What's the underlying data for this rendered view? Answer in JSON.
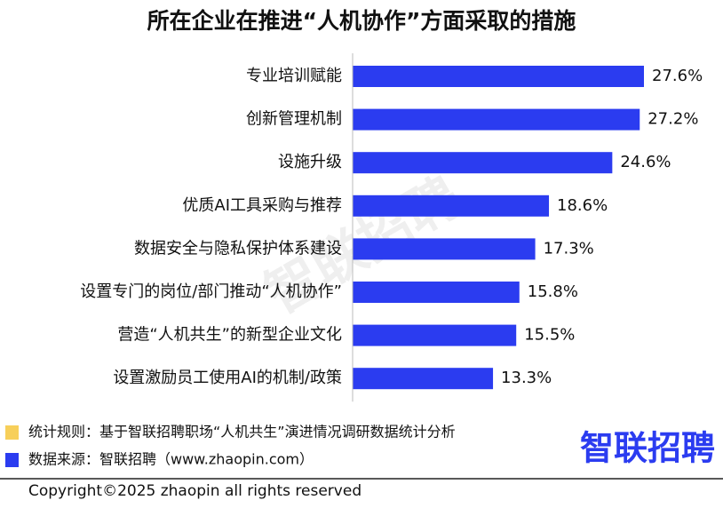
{
  "chart_data": {
    "type": "bar",
    "orientation": "horizontal",
    "title": "所在企业在推进“人机协作”方面采取的措施",
    "categories": [
      "专业培训赋能",
      "创新管理机制",
      "设施升级",
      "优质AI工具采购与推荐",
      "数据安全与隐私保护体系建设",
      "设置专门的岗位/部门推动“人机协作”",
      "营造“人机共生”的新型企业文化",
      "设置激励员工使用AI的机制/政策"
    ],
    "values": [
      27.6,
      27.2,
      24.6,
      18.6,
      17.3,
      15.8,
      15.5,
      13.3
    ],
    "value_labels": [
      "27.6%",
      "27.2%",
      "24.6%",
      "18.6%",
      "17.3%",
      "15.8%",
      "15.5%",
      "13.3%"
    ],
    "color": "#2b3cf0"
  },
  "footer": {
    "notes": [
      {
        "text": "统计规则：基于智联招聘职场“人机共生”演进情况调研数据统计分析",
        "color": "#f7cf5a"
      },
      {
        "text": "数据来源：智联招聘（www.zhaopin.com）",
        "color": "#2b3cf0"
      }
    ],
    "logo": "智联招聘",
    "watermark": "智联招聘",
    "copyright": "Copyright©2025 zhaopin all rights reserved"
  }
}
